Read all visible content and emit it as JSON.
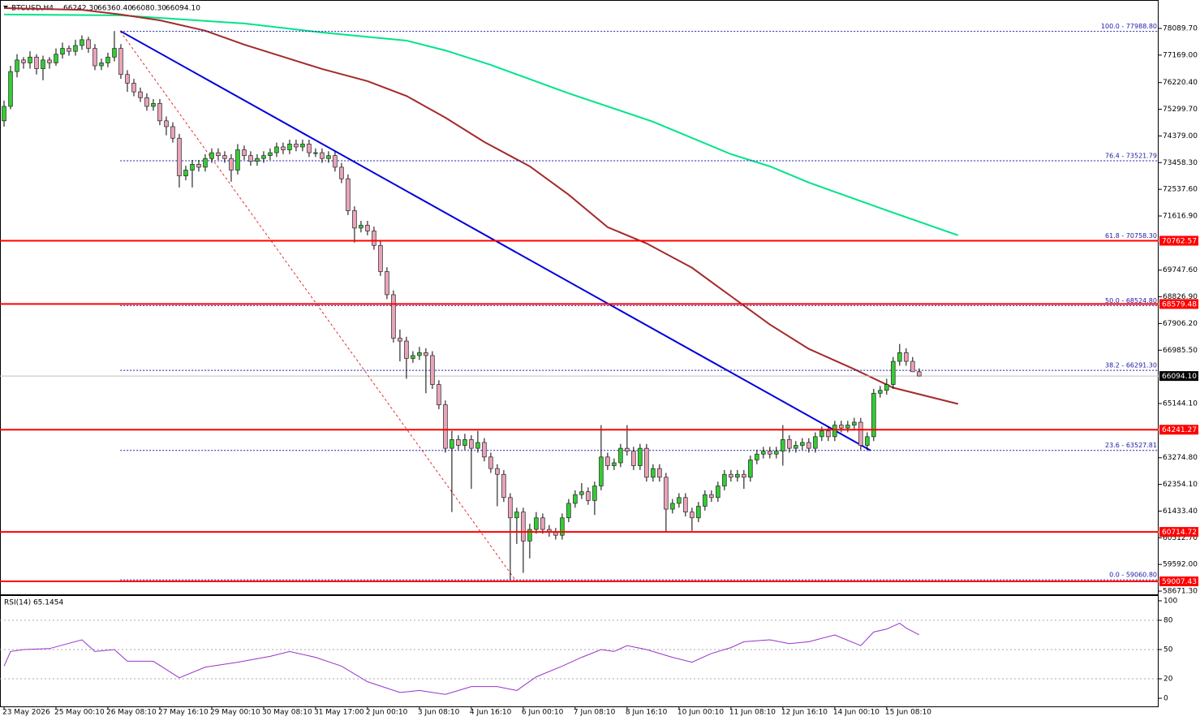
{
  "chart_data": {
    "type": "candlestick",
    "symbol": "BTCUSD,H4",
    "ohlc_text": [
      "66242.30",
      "66360.40",
      "66080.30",
      "66094.10"
    ],
    "bull_color": "#32cd32",
    "bear_color": "#eaa3b8",
    "xlim": [
      -0.625,
      177.9
    ],
    "ylim": [
      58560,
      79042
    ],
    "xticks": [
      {
        "value": 0,
        "label": "23 May 2026"
      },
      {
        "value": 8,
        "label": "25 May 00:10"
      },
      {
        "value": 16,
        "label": "26 May 08:10"
      },
      {
        "value": 24,
        "label": "27 May 16:10"
      },
      {
        "value": 32,
        "label": "29 May 00:10"
      },
      {
        "value": 40,
        "label": "30 May 08:10"
      },
      {
        "value": 48,
        "label": "31 May 17:00"
      },
      {
        "value": 56,
        "label": "2 Jun 00:10"
      },
      {
        "value": 64,
        "label": "3 Jun 08:10"
      },
      {
        "value": 72,
        "label": "4 Jun 16:10"
      },
      {
        "value": 80,
        "label": "6 Jun 00:10"
      },
      {
        "value": 88,
        "label": "7 Jun 08:10"
      },
      {
        "value": 96,
        "label": "8 Jun 16:10"
      },
      {
        "value": 104,
        "label": "10 Jun 00:10"
      },
      {
        "value": 112,
        "label": "11 Jun 08:10"
      },
      {
        "value": 120,
        "label": "12 Jun 16:10"
      },
      {
        "value": 128,
        "label": "14 Jun 00:10"
      },
      {
        "value": 136,
        "label": "15 Jun 08:10"
      }
    ],
    "yticks": [
      {
        "value": 78089.7,
        "label": "78089.70"
      },
      {
        "value": 77169,
        "label": "77169.00"
      },
      {
        "value": 76220.4,
        "label": "76220.40"
      },
      {
        "value": 75299.7,
        "label": "75299.70"
      },
      {
        "value": 74379,
        "label": "74379.00"
      },
      {
        "value": 73458.3,
        "label": "73458.30"
      },
      {
        "value": 72537.6,
        "label": "72537.60"
      },
      {
        "value": 71616.9,
        "label": "71616.90"
      },
      {
        "value": 69747.6,
        "label": "69747.60"
      },
      {
        "value": 68826.9,
        "label": "68826.90"
      },
      {
        "value": 67906.2,
        "label": "67906.20"
      },
      {
        "value": 66985.5,
        "label": "66985.50"
      },
      {
        "value": 65144.1,
        "label": "65144.10"
      },
      {
        "value": 63274.8,
        "label": "63274.80"
      },
      {
        "value": 62354.1,
        "label": "62354.10"
      },
      {
        "value": 61433.4,
        "label": "61433.40"
      },
      {
        "value": 60512.7,
        "label": "60512.70"
      },
      {
        "value": 59592,
        "label": "59592.00"
      },
      {
        "value": 58671.3,
        "label": "58671.30"
      }
    ],
    "current_price": {
      "value": 66094.1,
      "label": "66094.10"
    },
    "levels": {
      "color": "#ff0000",
      "values": [
        70762.57,
        68579.48,
        64241.27,
        60714.72,
        59007.43
      ]
    },
    "fib": {
      "x": 17.9,
      "color": "#1a1aa6",
      "levels": [
        {
          "value": 77988.8,
          "label": "100.0 - 77988.80"
        },
        {
          "value": 73521.79,
          "label": "76.4 - 73521.79"
        },
        {
          "value": 70758.3,
          "label": "61.8 - 70758.30"
        },
        {
          "value": 68524.8,
          "label": "50.0 - 68524.80"
        },
        {
          "value": 66291.3,
          "label": "38.2 - 66291.30"
        },
        {
          "value": 63527.81,
          "label": "23.6 - 63527.81"
        },
        {
          "value": 59060.8,
          "label": "0.0 - 59060.80"
        }
      ]
    },
    "trendlines": [
      {
        "color": "#0000dd",
        "dashed": false,
        "x": [
          17.9,
          133.5
        ],
        "values": [
          78000,
          63527.81
        ]
      },
      {
        "color": "#e03030",
        "dashed": true,
        "x": [
          17.9,
          78.75
        ],
        "values": [
          77988.8,
          59060.8
        ]
      }
    ],
    "lines": [
      {
        "color": "#00e38a",
        "x": [
          0,
          18,
          37,
          49,
          62,
          68,
          75,
          87,
          100,
          112,
          118,
          124,
          137,
          147
        ],
        "values": [
          78570,
          78540,
          78260,
          77950,
          77670,
          77330,
          76830,
          75850,
          74870,
          73750,
          73330,
          72770,
          71730,
          70950
        ]
      },
      {
        "color": "#a52a2a",
        "x": [
          0,
          12,
          18,
          24,
          31,
          37,
          43,
          49,
          56,
          62,
          68,
          74,
          81,
          87,
          93,
          99,
          106,
          112,
          118,
          124,
          131,
          137,
          147
        ],
        "values": [
          78790,
          78730,
          78570,
          78370,
          78010,
          77530,
          77110,
          76690,
          76270,
          75760,
          75010,
          74170,
          73330,
          72350,
          71230,
          70670,
          69830,
          68850,
          67870,
          67030,
          66330,
          65690,
          65130
        ]
      }
    ],
    "candles": [
      [
        74900,
        75600,
        74700,
        75400
      ],
      [
        75400,
        76800,
        75300,
        76600
      ],
      [
        76600,
        77200,
        76400,
        77000
      ],
      [
        77000,
        77100,
        76700,
        76900
      ],
      [
        76900,
        77300,
        76700,
        77100
      ],
      [
        77100,
        77200,
        76500,
        76700
      ],
      [
        76700,
        77150,
        76300,
        77000
      ],
      [
        77000,
        77100,
        76700,
        76900
      ],
      [
        76900,
        77400,
        76800,
        77200
      ],
      [
        77200,
        77600,
        77050,
        77400
      ],
      [
        77400,
        77500,
        77150,
        77300
      ],
      [
        77300,
        77700,
        77150,
        77500
      ],
      [
        77500,
        77850,
        77350,
        77700
      ],
      [
        77700,
        77800,
        77250,
        77400
      ],
      [
        77400,
        77550,
        76650,
        76800
      ],
      [
        76800,
        77050,
        76650,
        76900
      ],
      [
        76900,
        77250,
        76750,
        77100
      ],
      [
        77100,
        78000,
        76950,
        77400
      ],
      [
        77400,
        77550,
        76350,
        76500
      ],
      [
        76500,
        76650,
        75900,
        76200
      ],
      [
        76200,
        76350,
        75750,
        75900
      ],
      [
        75900,
        76050,
        75550,
        75700
      ],
      [
        75700,
        75850,
        75250,
        75400
      ],
      [
        75400,
        75650,
        75250,
        75500
      ],
      [
        75500,
        75650,
        74750,
        74900
      ],
      [
        74900,
        75050,
        74400,
        74700
      ],
      [
        74700,
        74850,
        74150,
        74300
      ],
      [
        74300,
        74450,
        72600,
        73000
      ],
      [
        73000,
        73350,
        72850,
        73200
      ],
      [
        73200,
        73550,
        72600,
        73400
      ],
      [
        73400,
        73550,
        73150,
        73300
      ],
      [
        73300,
        73750,
        73150,
        73600
      ],
      [
        73600,
        73950,
        73450,
        73800
      ],
      [
        73800,
        73950,
        73550,
        73700
      ],
      [
        73700,
        73850,
        73450,
        73600
      ],
      [
        73600,
        73750,
        72800,
        73200
      ],
      [
        73200,
        74100,
        73050,
        73900
      ],
      [
        73900,
        74050,
        73550,
        73700
      ],
      [
        73700,
        73850,
        73350,
        73500
      ],
      [
        73500,
        73750,
        73350,
        73600
      ],
      [
        73600,
        73850,
        73450,
        73700
      ],
      [
        73700,
        73950,
        73550,
        73800
      ],
      [
        73800,
        74150,
        73650,
        74000
      ],
      [
        74000,
        74150,
        73750,
        73900
      ],
      [
        73900,
        74250,
        73750,
        74100
      ],
      [
        74100,
        74250,
        73850,
        74000
      ],
      [
        74000,
        74250,
        73850,
        74100
      ],
      [
        74100,
        74250,
        73650,
        73800
      ],
      [
        73800,
        73950,
        73650,
        73800
      ],
      [
        73800,
        73950,
        73450,
        73600
      ],
      [
        73600,
        73850,
        73450,
        73700
      ],
      [
        73700,
        73850,
        73150,
        73300
      ],
      [
        73300,
        73450,
        72750,
        72900
      ],
      [
        72900,
        73050,
        71650,
        71800
      ],
      [
        71800,
        71950,
        70700,
        71200
      ],
      [
        71200,
        71450,
        71050,
        71300
      ],
      [
        71300,
        71450,
        70950,
        71100
      ],
      [
        71100,
        71250,
        70450,
        70600
      ],
      [
        70600,
        70750,
        69550,
        69700
      ],
      [
        69700,
        69850,
        68750,
        68900
      ],
      [
        68900,
        69050,
        67250,
        67400
      ],
      [
        67400,
        67700,
        66600,
        67300
      ],
      [
        67300,
        67450,
        66000,
        66700
      ],
      [
        66700,
        66950,
        66550,
        66800
      ],
      [
        66800,
        67100,
        66650,
        66900
      ],
      [
        66900,
        67050,
        65500,
        66800
      ],
      [
        66800,
        66950,
        65650,
        65800
      ],
      [
        65800,
        65950,
        64950,
        65100
      ],
      [
        65100,
        65250,
        63450,
        63600
      ],
      [
        63600,
        64200,
        61400,
        63900
      ],
      [
        63900,
        64050,
        63550,
        63700
      ],
      [
        63700,
        64100,
        63550,
        63900
      ],
      [
        63900,
        64050,
        62200,
        63600
      ],
      [
        63600,
        64200,
        63450,
        63800
      ],
      [
        63800,
        63950,
        63150,
        63300
      ],
      [
        63300,
        63450,
        62750,
        62900
      ],
      [
        62900,
        63050,
        61600,
        62700
      ],
      [
        62700,
        62850,
        61750,
        61900
      ],
      [
        61900,
        62050,
        59060,
        61200
      ],
      [
        61200,
        61550,
        60300,
        61400
      ],
      [
        61400,
        61550,
        59300,
        60400
      ],
      [
        60400,
        61000,
        59800,
        60800
      ],
      [
        60800,
        61400,
        60650,
        61200
      ],
      [
        61200,
        61350,
        60650,
        60800
      ],
      [
        60800,
        60950,
        60550,
        60700
      ],
      [
        60700,
        60850,
        60450,
        60600
      ],
      [
        60600,
        61350,
        60450,
        61200
      ],
      [
        61200,
        61850,
        61050,
        61700
      ],
      [
        61700,
        62150,
        61550,
        62000
      ],
      [
        62000,
        62400,
        61850,
        62100
      ],
      [
        62100,
        62250,
        61650,
        61800
      ],
      [
        61800,
        62450,
        61300,
        62300
      ],
      [
        62300,
        64400,
        62150,
        63300
      ],
      [
        63300,
        63450,
        62850,
        63000
      ],
      [
        63000,
        63250,
        62850,
        63100
      ],
      [
        63100,
        63750,
        62950,
        63600
      ],
      [
        63600,
        64400,
        63350,
        63500
      ],
      [
        63500,
        63650,
        62850,
        63000
      ],
      [
        63000,
        63750,
        62850,
        63600
      ],
      [
        63600,
        63750,
        62450,
        62600
      ],
      [
        62600,
        63050,
        62450,
        62900
      ],
      [
        62900,
        63050,
        62450,
        62600
      ],
      [
        62600,
        62750,
        60700,
        61500
      ],
      [
        61500,
        61850,
        61350,
        61700
      ],
      [
        61700,
        62050,
        61550,
        61900
      ],
      [
        61900,
        62050,
        61250,
        61400
      ],
      [
        61400,
        61550,
        60750,
        61200
      ],
      [
        61200,
        61750,
        61050,
        61600
      ],
      [
        61600,
        62150,
        61450,
        62000
      ],
      [
        62000,
        62150,
        61750,
        61900
      ],
      [
        61900,
        62450,
        61750,
        62300
      ],
      [
        62300,
        62850,
        62150,
        62700
      ],
      [
        62700,
        62850,
        62450,
        62600
      ],
      [
        62600,
        62850,
        62450,
        62700
      ],
      [
        62700,
        62850,
        62200,
        62600
      ],
      [
        62600,
        63350,
        62450,
        63200
      ],
      [
        63200,
        63550,
        63050,
        63400
      ],
      [
        63400,
        63650,
        63250,
        63500
      ],
      [
        63500,
        63650,
        63250,
        63400
      ],
      [
        63400,
        63650,
        63250,
        63500
      ],
      [
        63500,
        64400,
        63000,
        63900
      ],
      [
        63900,
        64050,
        63450,
        63600
      ],
      [
        63600,
        63850,
        63450,
        63700
      ],
      [
        63700,
        63950,
        63550,
        63800
      ],
      [
        63800,
        63950,
        63450,
        63600
      ],
      [
        63600,
        64150,
        63450,
        64000
      ],
      [
        64000,
        64350,
        63850,
        64200
      ],
      [
        64200,
        64350,
        63850,
        64000
      ],
      [
        64000,
        64550,
        63850,
        64400
      ],
      [
        64400,
        64550,
        64150,
        64300
      ],
      [
        64300,
        64550,
        64150,
        64400
      ],
      [
        64400,
        64650,
        64250,
        64500
      ],
      [
        64500,
        64650,
        63550,
        63700
      ],
      [
        63700,
        64150,
        63550,
        64000
      ],
      [
        64000,
        65650,
        63850,
        65500
      ],
      [
        65500,
        65750,
        65350,
        65600
      ],
      [
        65600,
        66000,
        65450,
        65800
      ],
      [
        65800,
        66750,
        65650,
        66600
      ],
      [
        66600,
        67200,
        66450,
        66900
      ],
      [
        66900,
        67050,
        66450,
        66600
      ],
      [
        66600,
        66750,
        66250,
        66242.3
      ],
      [
        66242.3,
        66360.4,
        66080.3,
        66094.1
      ]
    ],
    "rsi": {
      "label": "RSI(14) 65.1454",
      "color": "#9932cc",
      "ylim": [
        -8.3,
        105.8
      ],
      "yticks": [
        0,
        20,
        50,
        80,
        100
      ],
      "x": [
        0,
        1,
        3,
        7,
        12,
        14,
        17,
        19,
        23,
        27,
        31,
        36,
        41,
        44,
        48,
        52,
        56,
        61,
        64,
        68,
        72,
        76,
        79,
        82,
        86,
        89,
        92,
        94,
        96,
        99,
        103,
        106,
        109,
        112,
        114,
        118,
        121,
        124,
        128,
        132,
        134,
        136,
        138,
        139,
        141
      ],
      "values": [
        33,
        48,
        50,
        51,
        60,
        48,
        50,
        38,
        38,
        21,
        32,
        37,
        43,
        48,
        42,
        33,
        17,
        6,
        8,
        4,
        12,
        12,
        8,
        22,
        33,
        42,
        50,
        48,
        54,
        50,
        42,
        37,
        46,
        52,
        58,
        60,
        56,
        58,
        65,
        54,
        68,
        71,
        77,
        72,
        65.1454
      ]
    }
  }
}
